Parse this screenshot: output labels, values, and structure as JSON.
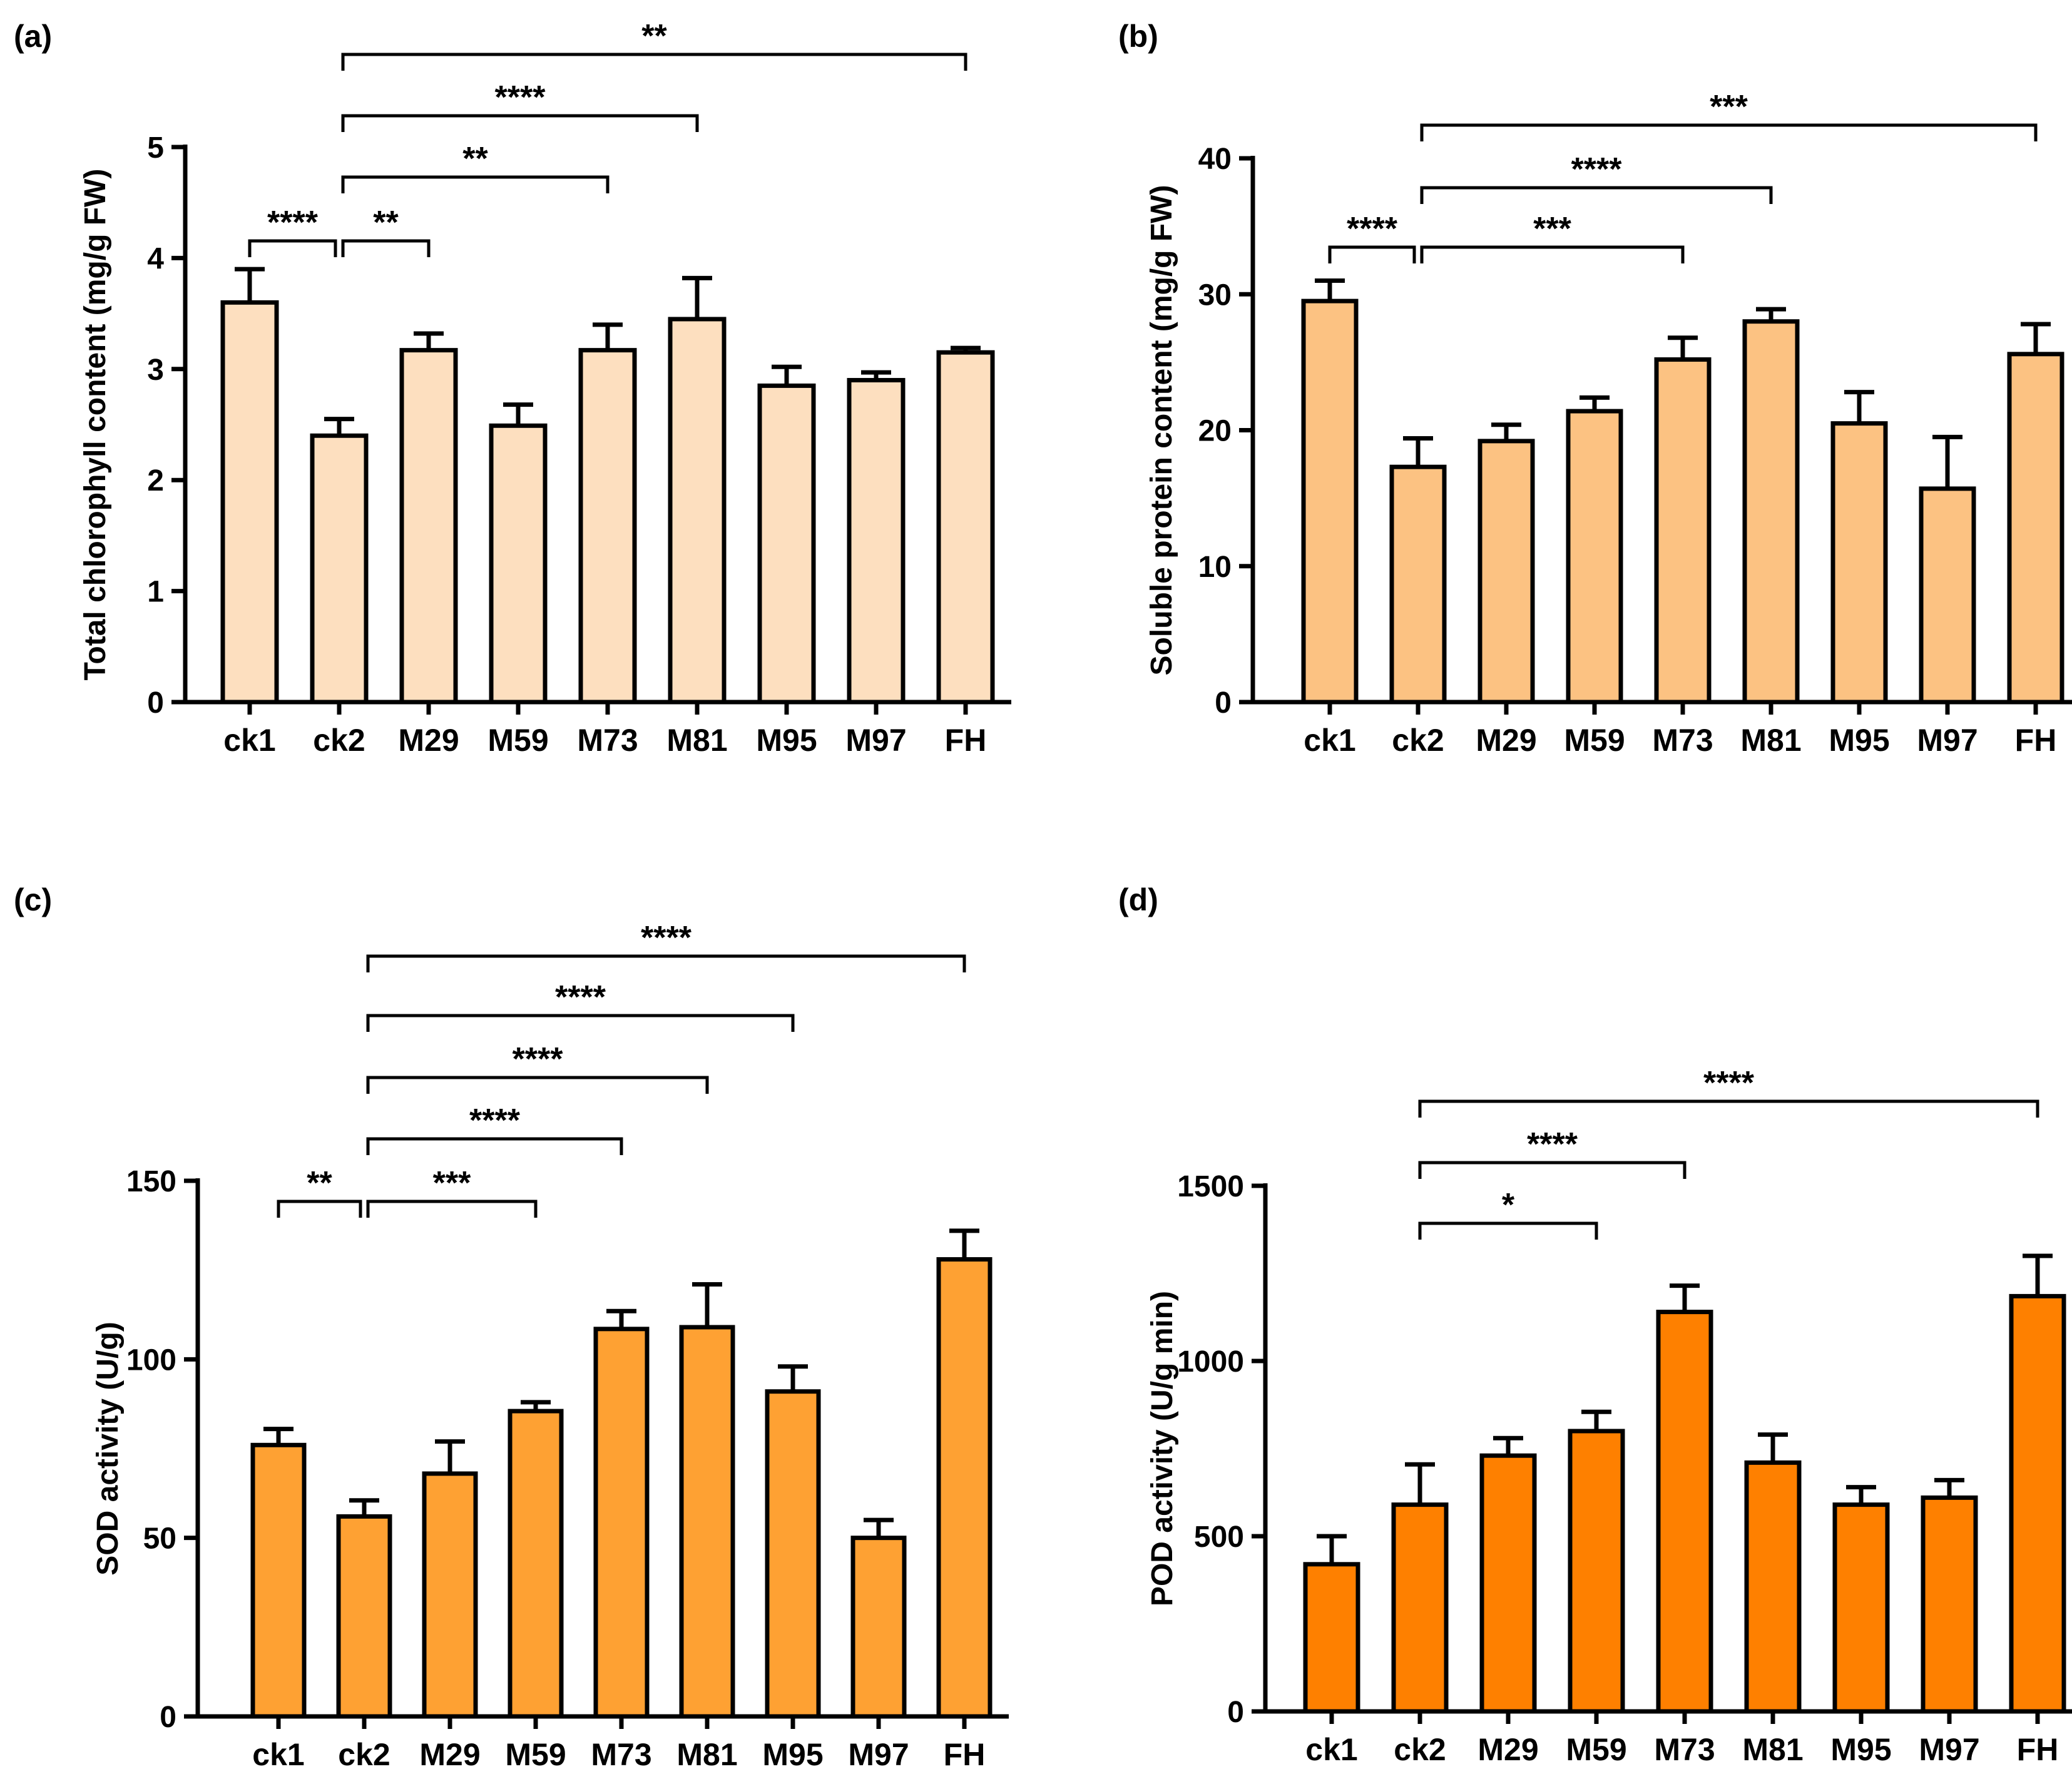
{
  "chart_data": [
    {
      "type": "bar",
      "panel": "(a)",
      "categories": [
        "ck1",
        "ck2",
        "M29",
        "M59",
        "M73",
        "M81",
        "M95",
        "M97",
        "FH"
      ],
      "values": [
        3.6,
        2.4,
        3.17,
        2.49,
        3.17,
        3.45,
        2.85,
        2.9,
        3.15
      ],
      "errors": [
        0.3,
        0.15,
        0.15,
        0.19,
        0.23,
        0.37,
        0.17,
        0.07,
        0.04
      ],
      "ylabel": "Total chlorophyll content (mg/g FW)",
      "ylim": [
        0,
        5
      ],
      "yticks": [
        "0",
        "1",
        "2",
        "3",
        "4",
        "5"
      ],
      "fill": "#fddfbf",
      "significance": [
        {
          "from": "ck1",
          "to": "ck2",
          "label": "****"
        },
        {
          "from": "ck2",
          "to": "M29",
          "label": "**"
        },
        {
          "from": "ck2",
          "to": "M73",
          "label": "**"
        },
        {
          "from": "ck2",
          "to": "M81",
          "label": "****"
        },
        {
          "from": "ck2",
          "to": "FH",
          "label": "**"
        }
      ]
    },
    {
      "type": "bar",
      "panel": "(b)",
      "categories": [
        "ck1",
        "ck2",
        "M29",
        "M59",
        "M73",
        "M81",
        "M95",
        "M97",
        "FH"
      ],
      "values": [
        29.5,
        17.3,
        19.2,
        21.4,
        25.2,
        28,
        20.5,
        15.7,
        25.6
      ],
      "errors": [
        1.5,
        2.1,
        1.2,
        1,
        1.6,
        0.9,
        2.3,
        3.8,
        2.2
      ],
      "ylabel": "Soluble protein content (mg/g FW)",
      "ylim": [
        0,
        40
      ],
      "yticks": [
        "0",
        "10",
        "20",
        "30",
        "40"
      ],
      "fill": "#fcc282",
      "significance": [
        {
          "from": "ck1",
          "to": "ck2",
          "label": "****"
        },
        {
          "from": "ck2",
          "to": "M73",
          "label": "***"
        },
        {
          "from": "ck2",
          "to": "M81",
          "label": "****"
        },
        {
          "from": "ck2",
          "to": "FH",
          "label": "***"
        }
      ]
    },
    {
      "type": "bar",
      "panel": "(c)",
      "categories": [
        "ck1",
        "ck2",
        "M29",
        "M59",
        "M73",
        "M81",
        "M95",
        "M97",
        "FH"
      ],
      "values": [
        76,
        56,
        68,
        85.5,
        108.5,
        109,
        91,
        50,
        128
      ],
      "errors": [
        4.5,
        4.5,
        9,
        2.5,
        5,
        12,
        7,
        5,
        8
      ],
      "ylabel": "SOD activity (U/g)",
      "ylim": [
        0,
        150
      ],
      "yticks": [
        "0",
        "50",
        "100",
        "150"
      ],
      "fill": "#fea133",
      "significance": [
        {
          "from": "ck1",
          "to": "ck2",
          "label": "**"
        },
        {
          "from": "ck2",
          "to": "M59",
          "label": "***"
        },
        {
          "from": "ck2",
          "to": "M73",
          "label": "****"
        },
        {
          "from": "ck2",
          "to": "M81",
          "label": "****"
        },
        {
          "from": "ck2",
          "to": "M95",
          "label": "****"
        },
        {
          "from": "ck2",
          "to": "FH",
          "label": "****"
        }
      ]
    },
    {
      "type": "bar",
      "panel": "(d)",
      "categories": [
        "ck1",
        "ck2",
        "M29",
        "M59",
        "M73",
        "M81",
        "M95",
        "M97",
        "FH"
      ],
      "values": [
        420,
        590,
        730,
        800,
        1140,
        710,
        590,
        610,
        1185
      ],
      "errors": [
        80,
        115,
        50,
        55,
        75,
        80,
        50,
        50,
        115
      ],
      "ylabel": "POD activity (U/g min)",
      "ylim": [
        0,
        1500
      ],
      "yticks": [
        "0",
        "500",
        "1000",
        "1500"
      ],
      "fill": "#fe8000",
      "significance": [
        {
          "from": "ck2",
          "to": "M59",
          "label": "*"
        },
        {
          "from": "ck2",
          "to": "M73",
          "label": "****"
        },
        {
          "from": "ck2",
          "to": "FH",
          "label": "****"
        }
      ]
    }
  ]
}
